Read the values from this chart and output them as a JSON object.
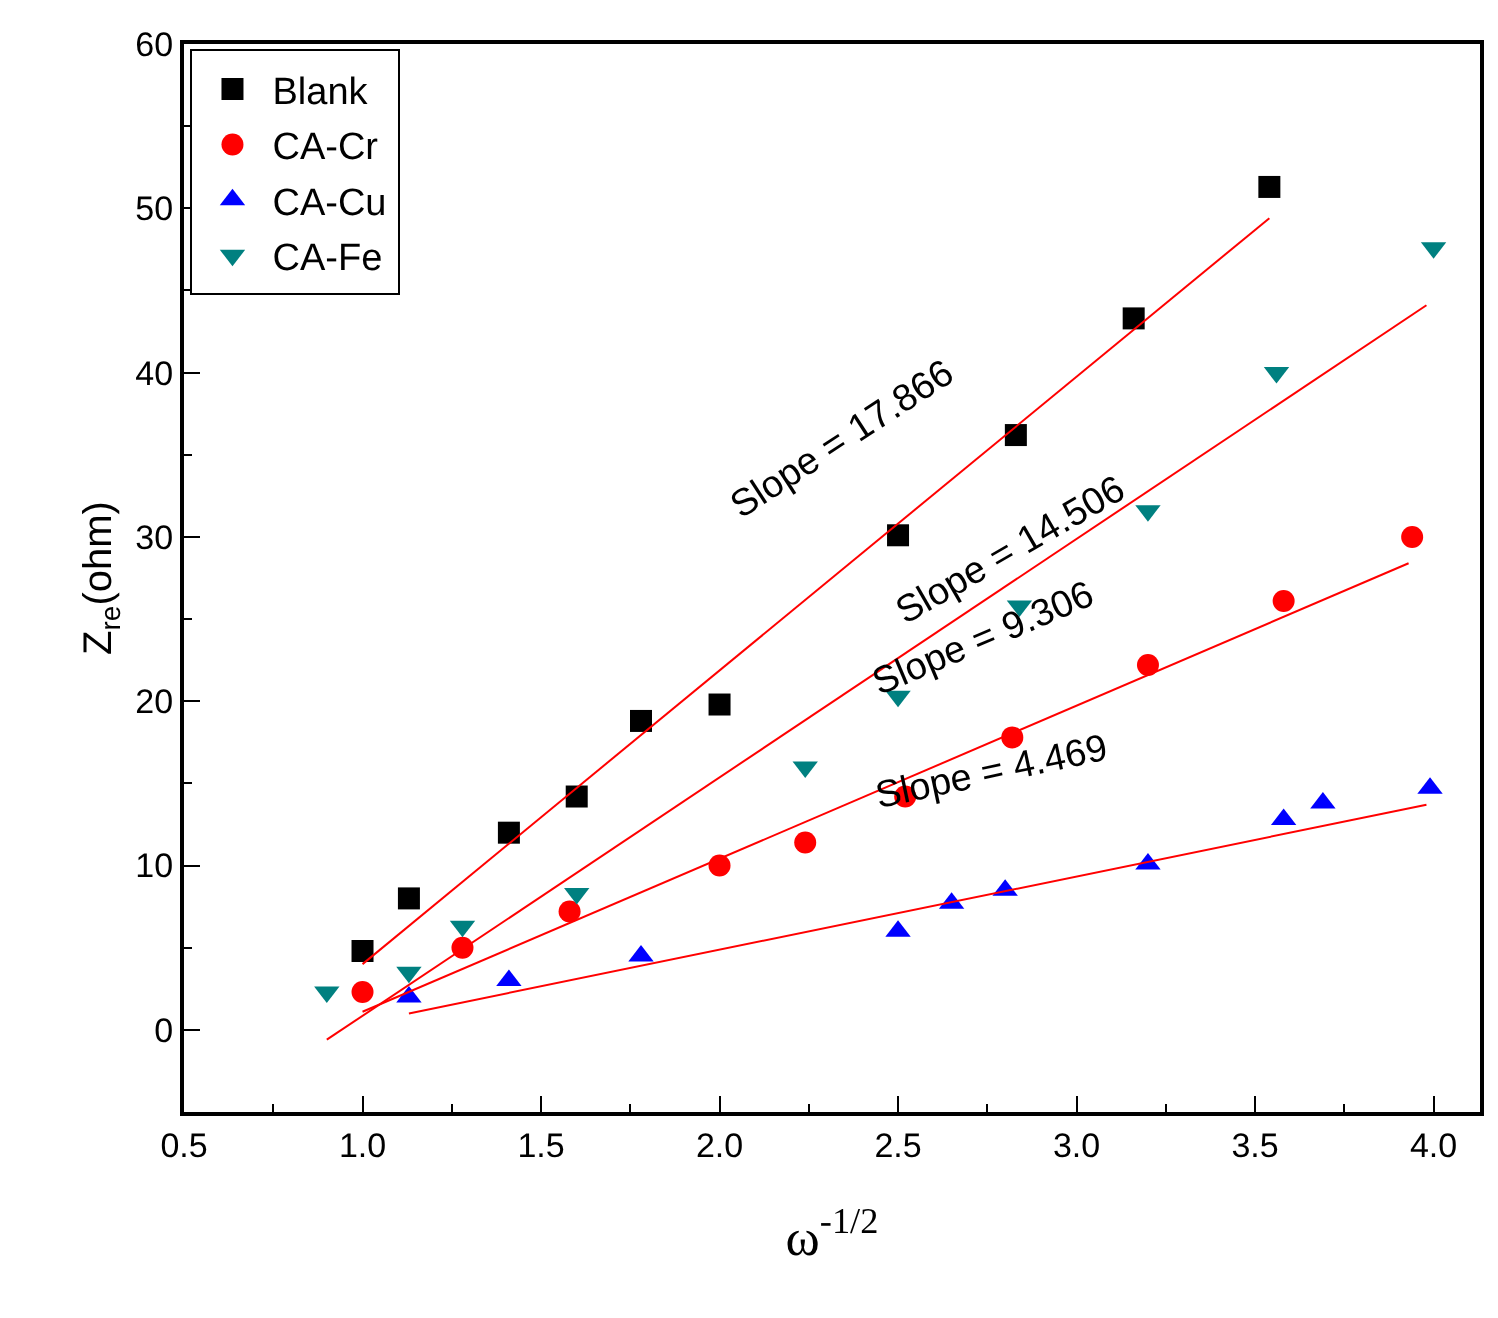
{
  "chart_data": {
    "type": "scatter",
    "xlabel": "ω$^{-1/2}$",
    "ylabel": "Z$_{re}$(ohm)",
    "xlim": [
      0.5,
      4.13
    ],
    "ylim": [
      -5,
      60
    ],
    "xticks": [
      {
        "value": 0.5,
        "label": "0.5"
      },
      {
        "value": 1,
        "label": "1.0"
      },
      {
        "value": 1.5,
        "label": "1.5"
      },
      {
        "value": 2,
        "label": "2.0"
      },
      {
        "value": 2.5,
        "label": "2.5"
      },
      {
        "value": 3,
        "label": "3.0"
      },
      {
        "value": 3.5,
        "label": "3.5"
      },
      {
        "value": 4,
        "label": "4.0"
      }
    ],
    "yticks": [
      0,
      10,
      20,
      30,
      40,
      50,
      60
    ],
    "grid": false,
    "legend": "top left",
    "series": [
      {
        "name": "Blank",
        "color": "#000000",
        "marker": "square",
        "x": [
          1.0,
          1.13,
          1.41,
          1.6,
          1.78,
          2.0,
          2.5,
          2.83,
          3.16,
          3.54
        ],
        "values": [
          4.8,
          8.0,
          12,
          14.2,
          18.8,
          19.8,
          30.1,
          36.2,
          43.3,
          51.3
        ]
      },
      {
        "name": "CA-Cr",
        "color": "#ff0000",
        "marker": "circle",
        "x": [
          1.0,
          1.28,
          1.58,
          2.0,
          2.24,
          2.52,
          2.82,
          3.2,
          3.58,
          3.94
        ],
        "values": [
          2.3,
          5.0,
          7.2,
          10,
          11.4,
          14.2,
          17.8,
          22.2,
          26.1,
          30
        ]
      },
      {
        "name": "CA-Cu",
        "color": "#0000ff",
        "marker": "triangle",
        "x": [
          1.13,
          1.41,
          1.78,
          2.5,
          2.65,
          2.8,
          3.2,
          3.58,
          3.69,
          3.99
        ],
        "values": [
          2,
          3,
          4.5,
          6,
          7.7,
          8.5,
          10.1,
          12.8,
          13.8,
          14.7
        ]
      },
      {
        "name": "CA-Fe",
        "color": "#008080",
        "marker": "triangle-down",
        "x": [
          0.9,
          1.13,
          1.28,
          1.6,
          2.24,
          2.5,
          2.84,
          3.2,
          3.56,
          4.0
        ],
        "values": [
          2.3,
          3.5,
          6.3,
          8.3,
          16,
          20.3,
          25.8,
          31.6,
          40,
          47.6
        ]
      },
      {
        "type": "line",
        "color": "#ff0000",
        "marker": "none",
        "x": [
          1.0,
          3.54
        ],
        "values": [
          4.0,
          49.4
        ]
      },
      {
        "type": "line",
        "color": "#ff0000",
        "marker": "none",
        "x": [
          0.9,
          3.98
        ],
        "values": [
          -0.6,
          44.1
        ]
      },
      {
        "type": "line",
        "color": "#ff0000",
        "marker": "none",
        "x": [
          1.0,
          3.93
        ],
        "values": [
          1.1,
          28.4
        ]
      },
      {
        "type": "line",
        "color": "#ff0000",
        "marker": "none",
        "x": [
          1.13,
          3.98
        ],
        "values": [
          1.0,
          13.7
        ]
      }
    ],
    "annotations": [
      "Slope = 17.866",
      "Slope = 14.506",
      "Slope = 9.306",
      "Slope = 4.469"
    ]
  }
}
